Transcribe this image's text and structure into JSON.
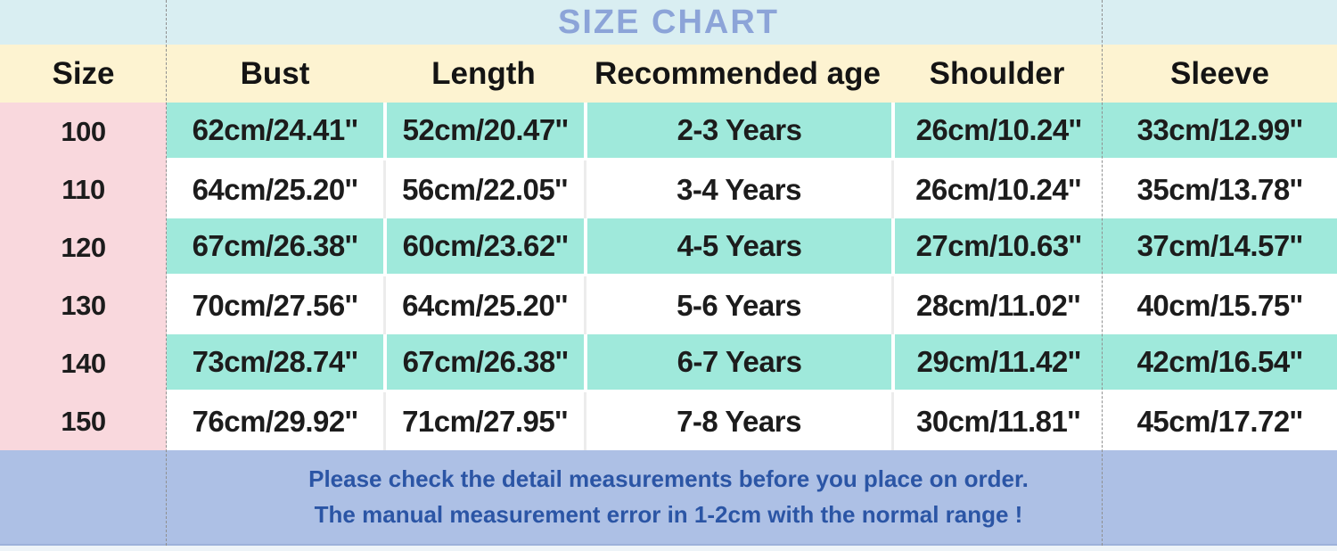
{
  "title": "SIZE CHART",
  "chart_data": {
    "type": "table",
    "title": "SIZE CHART",
    "columns": [
      "Size",
      "Bust",
      "Length",
      "Recommended age",
      "Shoulder",
      "Sleeve"
    ],
    "rows": [
      [
        "100",
        "62cm/24.41''",
        "52cm/20.47''",
        "2-3 Years",
        "26cm/10.24''",
        "33cm/12.99''"
      ],
      [
        "110",
        "64cm/25.20''",
        "56cm/22.05''",
        "3-4 Years",
        "26cm/10.24''",
        "35cm/13.78''"
      ],
      [
        "120",
        "67cm/26.38''",
        "60cm/23.62''",
        "4-5 Years",
        "27cm/10.63''",
        "37cm/14.57''"
      ],
      [
        "130",
        "70cm/27.56''",
        "64cm/25.20''",
        "5-6 Years",
        "28cm/11.02''",
        "40cm/15.75''"
      ],
      [
        "140",
        "73cm/28.74''",
        "67cm/26.38''",
        "6-7 Years",
        "29cm/11.42''",
        "42cm/16.54''"
      ],
      [
        "150",
        "76cm/29.92''",
        "71cm/27.95''",
        "7-8 Years",
        "30cm/11.81''",
        "45cm/17.72''"
      ]
    ]
  },
  "footer": {
    "line1": "Please check the detail measurements before you place on order.",
    "line2": "The manual measurement error in 1-2cm with the normal range !"
  },
  "colors": {
    "title_band_bg": "#d9eef2",
    "title_text": "#8ca4d8",
    "header_bg": "#fdf3d1",
    "size_column_bg": "#f9d8dd",
    "row_teal_bg": "#9fe9db",
    "row_white_bg": "#ffffff",
    "footer_bg": "#adc0e5",
    "footer_text": "#2b55a5",
    "table_text": "#1c1c1c"
  }
}
